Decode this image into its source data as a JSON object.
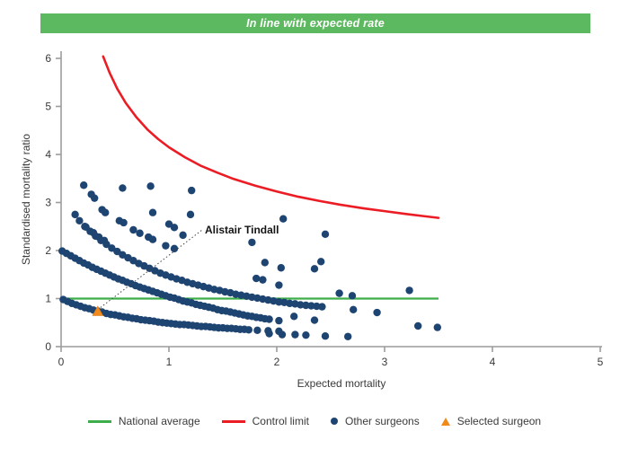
{
  "header": {
    "status_banner": "In line with expected rate",
    "banner_color": "#5CB95F"
  },
  "chart_data": {
    "type": "scatter",
    "title": "",
    "xlabel": "Expected mortality",
    "ylabel": "Standardised mortality ratio",
    "xlim": [
      0,
      5
    ],
    "ylim": [
      0,
      6
    ],
    "x_ticks": [
      0,
      1,
      2,
      3,
      4,
      5
    ],
    "y_ticks": [
      0,
      1,
      2,
      3,
      4,
      5,
      6
    ],
    "grid": false,
    "legend_position": "bottom",
    "axis_color": "#9c9c9c",
    "national_average": {
      "label": "National average",
      "y": 1,
      "x_start": 0,
      "x_end": 3.5,
      "color": "#3DAE49"
    },
    "control_limit": {
      "label": "Control limit",
      "color": "#EC1C24",
      "points": [
        [
          0.39,
          6.04
        ],
        [
          0.45,
          5.7
        ],
        [
          0.52,
          5.37
        ],
        [
          0.6,
          5.07
        ],
        [
          0.7,
          4.77
        ],
        [
          0.8,
          4.52
        ],
        [
          0.9,
          4.32
        ],
        [
          1.0,
          4.15
        ],
        [
          1.15,
          3.94
        ],
        [
          1.3,
          3.76
        ],
        [
          1.45,
          3.62
        ],
        [
          1.6,
          3.49
        ],
        [
          1.8,
          3.35
        ],
        [
          2.0,
          3.23
        ],
        [
          2.2,
          3.12
        ],
        [
          2.4,
          3.03
        ],
        [
          2.6,
          2.95
        ],
        [
          2.8,
          2.88
        ],
        [
          3.0,
          2.82
        ],
        [
          3.2,
          2.76
        ],
        [
          3.35,
          2.72
        ],
        [
          3.5,
          2.68
        ]
      ]
    },
    "other_surgeons": {
      "label": "Other surgeons",
      "color": "#1E4472",
      "dense_bands": [
        [
          [
            0.02,
            0.98
          ],
          [
            0.06,
            0.94
          ],
          [
            0.1,
            0.9
          ],
          [
            0.14,
            0.87
          ],
          [
            0.18,
            0.84
          ],
          [
            0.22,
            0.81
          ],
          [
            0.26,
            0.79
          ],
          [
            0.3,
            0.76
          ],
          [
            0.34,
            0.74
          ],
          [
            0.38,
            0.72
          ],
          [
            0.42,
            0.69
          ],
          [
            0.46,
            0.67
          ],
          [
            0.5,
            0.66
          ],
          [
            0.54,
            0.64
          ],
          [
            0.58,
            0.62
          ],
          [
            0.62,
            0.61
          ],
          [
            0.66,
            0.59
          ],
          [
            0.7,
            0.58
          ],
          [
            0.74,
            0.56
          ],
          [
            0.78,
            0.55
          ],
          [
            0.82,
            0.54
          ],
          [
            0.86,
            0.53
          ],
          [
            0.9,
            0.51
          ],
          [
            0.94,
            0.5
          ],
          [
            0.98,
            0.49
          ],
          [
            1.02,
            0.48
          ],
          [
            1.06,
            0.47
          ],
          [
            1.1,
            0.46
          ],
          [
            1.14,
            0.46
          ],
          [
            1.18,
            0.45
          ],
          [
            1.22,
            0.44
          ],
          [
            1.26,
            0.43
          ],
          [
            1.3,
            0.42
          ],
          [
            1.34,
            0.42
          ],
          [
            1.38,
            0.41
          ],
          [
            1.42,
            0.4
          ],
          [
            1.46,
            0.39
          ],
          [
            1.5,
            0.39
          ],
          [
            1.54,
            0.38
          ],
          [
            1.58,
            0.38
          ],
          [
            1.62,
            0.37
          ],
          [
            1.66,
            0.36
          ],
          [
            1.7,
            0.36
          ],
          [
            1.74,
            0.35
          ]
        ],
        [
          [
            0.01,
            1.99
          ],
          [
            0.05,
            1.94
          ],
          [
            0.09,
            1.89
          ],
          [
            0.13,
            1.84
          ],
          [
            0.17,
            1.79
          ],
          [
            0.21,
            1.74
          ],
          [
            0.25,
            1.7
          ],
          [
            0.29,
            1.65
          ],
          [
            0.33,
            1.61
          ],
          [
            0.37,
            1.57
          ],
          [
            0.41,
            1.53
          ],
          [
            0.45,
            1.49
          ],
          [
            0.49,
            1.45
          ],
          [
            0.53,
            1.41
          ],
          [
            0.57,
            1.38
          ],
          [
            0.61,
            1.34
          ],
          [
            0.65,
            1.31
          ],
          [
            0.69,
            1.27
          ],
          [
            0.73,
            1.24
          ],
          [
            0.77,
            1.21
          ],
          [
            0.81,
            1.18
          ],
          [
            0.85,
            1.15
          ],
          [
            0.89,
            1.12
          ],
          [
            0.93,
            1.09
          ],
          [
            0.97,
            1.06
          ],
          [
            1.01,
            1.03
          ],
          [
            1.05,
            1.01
          ],
          [
            1.09,
            0.98
          ],
          [
            1.13,
            0.95
          ],
          [
            1.17,
            0.93
          ],
          [
            1.21,
            0.91
          ],
          [
            1.25,
            0.88
          ],
          [
            1.29,
            0.86
          ],
          [
            1.33,
            0.84
          ],
          [
            1.37,
            0.82
          ],
          [
            1.41,
            0.8
          ],
          [
            1.45,
            0.77
          ],
          [
            1.49,
            0.75
          ],
          [
            1.53,
            0.74
          ],
          [
            1.57,
            0.72
          ],
          [
            1.61,
            0.7
          ],
          [
            1.65,
            0.68
          ],
          [
            1.69,
            0.66
          ],
          [
            1.73,
            0.64
          ],
          [
            1.77,
            0.63
          ],
          [
            1.81,
            0.61
          ],
          [
            1.85,
            0.6
          ],
          [
            1.89,
            0.58
          ],
          [
            1.93,
            0.57
          ]
        ],
        [
          [
            0.17,
            2.62
          ],
          [
            0.22,
            2.5
          ],
          [
            0.27,
            2.4
          ],
          [
            0.32,
            2.3
          ],
          [
            0.37,
            2.21
          ],
          [
            0.42,
            2.13
          ],
          [
            0.47,
            2.05
          ],
          [
            0.52,
            1.98
          ],
          [
            0.57,
            1.91
          ],
          [
            0.62,
            1.85
          ],
          [
            0.67,
            1.79
          ],
          [
            0.72,
            1.73
          ],
          [
            0.77,
            1.68
          ],
          [
            0.82,
            1.63
          ],
          [
            0.87,
            1.58
          ],
          [
            0.92,
            1.53
          ],
          [
            0.97,
            1.49
          ],
          [
            1.02,
            1.45
          ],
          [
            1.07,
            1.41
          ],
          [
            1.12,
            1.38
          ],
          [
            1.17,
            1.34
          ],
          [
            1.22,
            1.31
          ],
          [
            1.27,
            1.28
          ],
          [
            1.32,
            1.25
          ],
          [
            1.37,
            1.22
          ],
          [
            1.42,
            1.19
          ],
          [
            1.47,
            1.17
          ],
          [
            1.52,
            1.14
          ],
          [
            1.57,
            1.12
          ],
          [
            1.62,
            1.09
          ],
          [
            1.67,
            1.07
          ],
          [
            1.72,
            1.05
          ],
          [
            1.77,
            1.03
          ],
          [
            1.82,
            1.01
          ],
          [
            1.87,
            0.99
          ],
          [
            1.92,
            0.97
          ],
          [
            1.97,
            0.95
          ],
          [
            2.02,
            0.93
          ],
          [
            2.07,
            0.92
          ],
          [
            2.12,
            0.9
          ],
          [
            2.17,
            0.89
          ],
          [
            2.22,
            0.87
          ],
          [
            2.27,
            0.86
          ],
          [
            2.32,
            0.85
          ],
          [
            2.37,
            0.84
          ],
          [
            2.42,
            0.83
          ]
        ]
      ],
      "scattered_points": [
        [
          0.21,
          3.36
        ],
        [
          0.28,
          3.17
        ],
        [
          0.31,
          3.09
        ],
        [
          0.57,
          3.3
        ],
        [
          0.83,
          3.34
        ],
        [
          1.21,
          3.25
        ],
        [
          0.13,
          2.75
        ],
        [
          0.23,
          2.49
        ],
        [
          0.3,
          2.37
        ],
        [
          0.35,
          2.28
        ],
        [
          0.4,
          2.21
        ],
        [
          0.38,
          2.85
        ],
        [
          0.41,
          2.79
        ],
        [
          0.54,
          2.62
        ],
        [
          0.58,
          2.58
        ],
        [
          0.67,
          2.43
        ],
        [
          0.73,
          2.36
        ],
        [
          0.81,
          2.28
        ],
        [
          0.85,
          2.23
        ],
        [
          0.97,
          2.1
        ],
        [
          1.05,
          2.04
        ],
        [
          0.85,
          2.79
        ],
        [
          1.0,
          2.55
        ],
        [
          1.05,
          2.48
        ],
        [
          1.13,
          2.32
        ],
        [
          1.2,
          2.75
        ],
        [
          1.77,
          2.17
        ],
        [
          2.06,
          2.66
        ],
        [
          2.45,
          2.34
        ],
        [
          1.89,
          1.75
        ],
        [
          2.04,
          1.64
        ],
        [
          2.41,
          1.77
        ],
        [
          2.35,
          1.62
        ],
        [
          1.81,
          1.42
        ],
        [
          1.87,
          1.39
        ],
        [
          2.02,
          1.28
        ],
        [
          2.58,
          1.11
        ],
        [
          2.7,
          1.06
        ],
        [
          3.23,
          1.17
        ],
        [
          2.71,
          0.77
        ],
        [
          2.93,
          0.71
        ],
        [
          2.16,
          0.63
        ],
        [
          2.35,
          0.55
        ],
        [
          2.02,
          0.54
        ],
        [
          3.31,
          0.43
        ],
        [
          3.49,
          0.4
        ],
        [
          1.93,
          0.27
        ],
        [
          2.05,
          0.25
        ],
        [
          2.17,
          0.25
        ],
        [
          2.27,
          0.24
        ],
        [
          2.45,
          0.22
        ],
        [
          2.66,
          0.21
        ],
        [
          1.82,
          0.34
        ],
        [
          1.92,
          0.33
        ],
        [
          2.02,
          0.32
        ]
      ]
    },
    "selected_surgeon": {
      "label": "Selected surgeon",
      "name": "Alistair Tindall",
      "color": "#F08A1D",
      "point": [
        0.34,
        0.72
      ]
    }
  },
  "legend": {
    "items": [
      {
        "label": "National average",
        "marker": "line",
        "color": "#3DAE49"
      },
      {
        "label": "Control limit",
        "marker": "line",
        "color": "#EC1C24"
      },
      {
        "label": "Other surgeons",
        "marker": "dot",
        "color": "#1E4472"
      },
      {
        "label": "Selected surgeon",
        "marker": "triangle",
        "color": "#F08A1D"
      }
    ]
  }
}
